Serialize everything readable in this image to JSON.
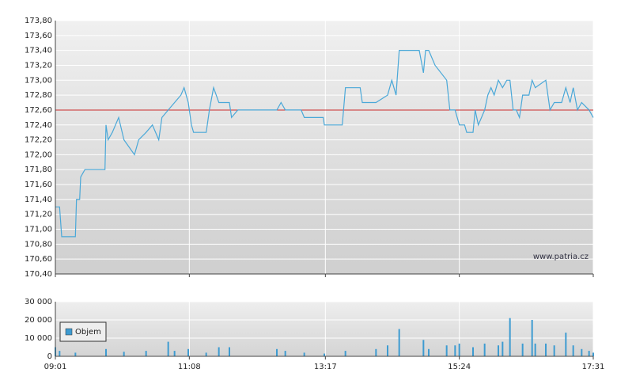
{
  "chart_data": [
    {
      "type": "line",
      "x": [
        "09:01",
        "09:05",
        "09:07",
        "09:20",
        "09:21",
        "09:24",
        "09:25",
        "09:29",
        "09:48",
        "09:49",
        "09:51",
        "09:55",
        "10:01",
        "10:06",
        "10:16",
        "10:20",
        "10:27",
        "10:33",
        "10:39",
        "10:42",
        "10:48",
        "10:54",
        "11:00",
        "11:03",
        "11:07",
        "11:10",
        "11:12",
        "11:24",
        "11:27",
        "11:31",
        "11:36",
        "11:46",
        "11:48",
        "11:54",
        "12:31",
        "12:35",
        "12:39",
        "12:54",
        "12:57",
        "13:15",
        "13:16",
        "13:33",
        "13:36",
        "13:50",
        "13:52",
        "14:05",
        "14:16",
        "14:20",
        "14:24",
        "14:27",
        "14:46",
        "14:50",
        "14:52",
        "14:55",
        "15:01",
        "15:12",
        "15:15",
        "15:20",
        "15:24",
        "15:29",
        "15:31",
        "15:37",
        "15:39",
        "15:42",
        "15:48",
        "15:51",
        "15:54",
        "15:57",
        "16:01",
        "16:05",
        "16:09",
        "16:12",
        "16:15",
        "16:18",
        "16:21",
        "16:24",
        "16:30",
        "16:33",
        "16:36",
        "16:46",
        "16:50",
        "16:54",
        "17:01",
        "17:05",
        "17:09",
        "17:12",
        "17:16",
        "17:20",
        "17:27",
        "17:31"
      ],
      "values": [
        171.3,
        171.3,
        170.9,
        170.9,
        171.4,
        171.4,
        171.7,
        171.8,
        171.8,
        172.4,
        172.2,
        172.3,
        172.5,
        172.2,
        172.0,
        172.2,
        172.3,
        172.4,
        172.2,
        172.5,
        172.6,
        172.7,
        172.8,
        172.9,
        172.7,
        172.4,
        172.3,
        172.3,
        172.6,
        172.9,
        172.7,
        172.7,
        172.5,
        172.6,
        172.6,
        172.7,
        172.6,
        172.6,
        172.5,
        172.5,
        172.4,
        172.4,
        172.9,
        172.9,
        172.7,
        172.7,
        172.8,
        173.0,
        172.8,
        173.4,
        173.4,
        173.1,
        173.4,
        173.4,
        173.2,
        173.0,
        172.6,
        172.6,
        172.4,
        172.4,
        172.3,
        172.3,
        172.6,
        172.4,
        172.6,
        172.8,
        172.9,
        172.8,
        173.0,
        172.9,
        173.0,
        173.0,
        172.6,
        172.6,
        172.5,
        172.8,
        172.8,
        173.0,
        172.9,
        173.0,
        172.6,
        172.7,
        172.7,
        172.9,
        172.7,
        172.9,
        172.6,
        172.7,
        172.6,
        172.5
      ],
      "color": "#4aa8d8",
      "xlim": [
        "09:01",
        "17:31"
      ],
      "xticks": [
        "09:01",
        "11:08",
        "13:17",
        "15:24",
        "17:31"
      ],
      "ylim": [
        170.4,
        173.8
      ],
      "yticks": [
        {
          "value": 170.4,
          "label": "170,40"
        },
        {
          "value": 170.6,
          "label": "170,60"
        },
        {
          "value": 170.8,
          "label": "170,80"
        },
        {
          "value": 171.0,
          "label": "171,00"
        },
        {
          "value": 171.2,
          "label": "171,20"
        },
        {
          "value": 171.4,
          "label": "171,40"
        },
        {
          "value": 171.6,
          "label": "171,60"
        },
        {
          "value": 171.8,
          "label": "171,80"
        },
        {
          "value": 172.0,
          "label": "172,00"
        },
        {
          "value": 172.2,
          "label": "172,20"
        },
        {
          "value": 172.4,
          "label": "172,40"
        },
        {
          "value": 172.6,
          "label": "172,60"
        },
        {
          "value": 172.8,
          "label": "172,80"
        },
        {
          "value": 173.0,
          "label": "173,00"
        },
        {
          "value": 173.2,
          "label": "173,20"
        },
        {
          "value": 173.4,
          "label": "173,40"
        },
        {
          "value": 173.6,
          "label": "173,60"
        },
        {
          "value": 173.8,
          "label": "173,80"
        }
      ],
      "reference_line": 172.6,
      "reference_color": "#cc2b2b",
      "annotation": "www.patria.cz",
      "grid": true
    },
    {
      "type": "bar",
      "x": [
        "09:01",
        "09:05",
        "09:20",
        "09:49",
        "10:06",
        "10:27",
        "10:48",
        "10:54",
        "11:07",
        "11:24",
        "11:36",
        "11:46",
        "12:31",
        "12:39",
        "12:57",
        "13:16",
        "13:36",
        "14:05",
        "14:16",
        "14:27",
        "14:50",
        "14:55",
        "15:12",
        "15:20",
        "15:24",
        "15:37",
        "15:48",
        "16:01",
        "16:05",
        "16:12",
        "16:24",
        "16:33",
        "16:36",
        "16:46",
        "16:54",
        "17:05",
        "17:12",
        "17:20",
        "17:27",
        "17:31"
      ],
      "series": [
        {
          "name": "Objem",
          "color": "#3d9bd1",
          "values": [
            5000,
            3000,
            2000,
            4000,
            2500,
            3000,
            8000,
            3000,
            4000,
            2000,
            5000,
            5000,
            4000,
            3000,
            2000,
            1500,
            3000,
            4000,
            6000,
            15000,
            9000,
            4000,
            6000,
            6000,
            7000,
            5000,
            7000,
            6000,
            8000,
            21000,
            7000,
            20000,
            7000,
            7000,
            6000,
            13000,
            6000,
            4000,
            3000,
            2000
          ]
        }
      ],
      "xlim": [
        "09:01",
        "17:31"
      ],
      "xticks": [
        "09:01",
        "11:08",
        "13:17",
        "15:24",
        "17:31"
      ],
      "ylim": [
        0,
        30000
      ],
      "yticks": [
        0,
        {
          "value": 10000,
          "label": "10 000"
        },
        {
          "value": 20000,
          "label": "20 000"
        },
        {
          "value": 30000,
          "label": "30 000"
        }
      ],
      "grid": true
    }
  ]
}
